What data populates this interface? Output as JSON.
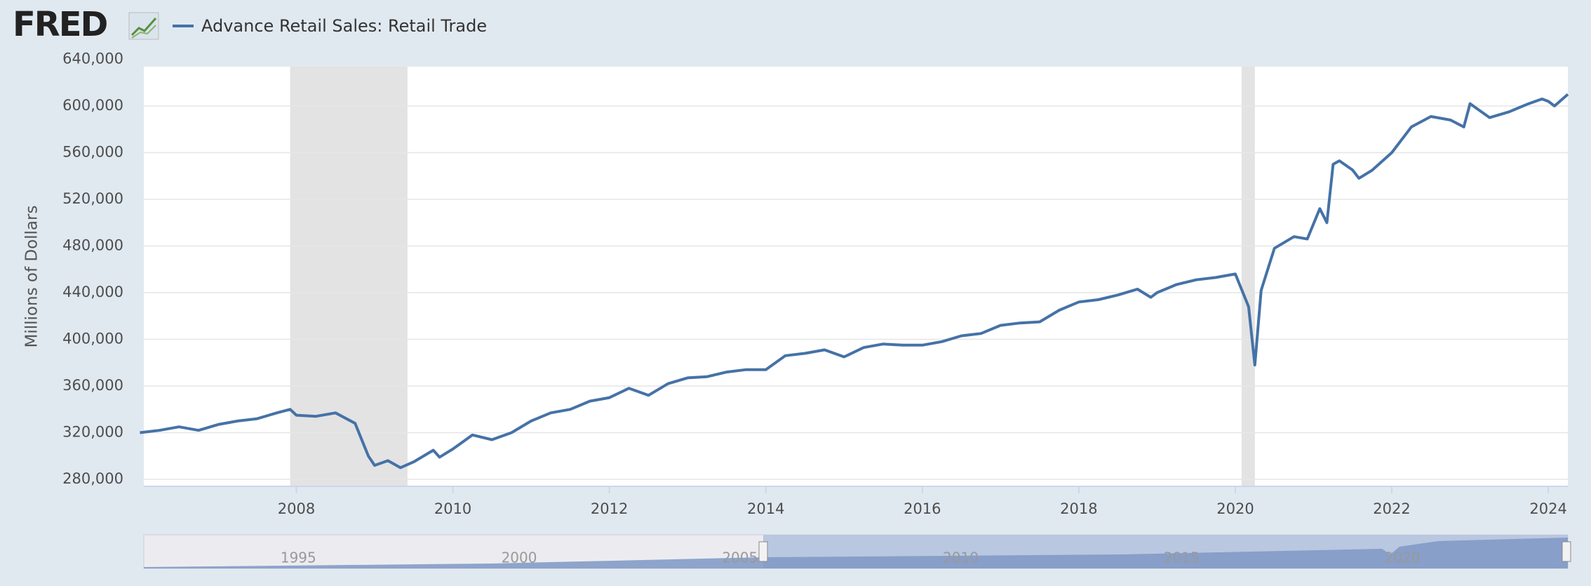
{
  "logo": "FRED",
  "chart_data": {
    "type": "line",
    "legend": "Advance Retail Sales: Retail Trade",
    "ylabel": "Millions of Dollars",
    "series": [
      {
        "name": "Advance Retail Sales: Retail Trade",
        "color": "#4572a7",
        "x": [
          2006.0,
          2006.25,
          2006.5,
          2006.75,
          2007.0,
          2007.25,
          2007.5,
          2007.75,
          2007.92,
          2008.0,
          2008.25,
          2008.5,
          2008.75,
          2008.92,
          2009.0,
          2009.17,
          2009.33,
          2009.5,
          2009.75,
          2009.83,
          2010.0,
          2010.25,
          2010.5,
          2010.75,
          2011.0,
          2011.25,
          2011.5,
          2011.75,
          2012.0,
          2012.25,
          2012.5,
          2012.75,
          2013.0,
          2013.25,
          2013.5,
          2013.75,
          2014.0,
          2014.25,
          2014.5,
          2014.75,
          2015.0,
          2015.25,
          2015.5,
          2015.75,
          2016.0,
          2016.25,
          2016.5,
          2016.75,
          2017.0,
          2017.25,
          2017.5,
          2017.75,
          2018.0,
          2018.25,
          2018.5,
          2018.75,
          2018.92,
          2019.0,
          2019.25,
          2019.5,
          2019.75,
          2020.0,
          2020.17,
          2020.25,
          2020.33,
          2020.5,
          2020.75,
          2020.92,
          2021.08,
          2021.17,
          2021.25,
          2021.33,
          2021.5,
          2021.58,
          2021.75,
          2022.0,
          2022.25,
          2022.5,
          2022.75,
          2022.92,
          2023.0,
          2023.25,
          2023.5,
          2023.75,
          2023.92,
          2024.0,
          2024.08,
          2024.25
        ],
        "values": [
          320000,
          322000,
          325000,
          322000,
          327000,
          330000,
          332000,
          337000,
          340000,
          335000,
          334000,
          337000,
          328000,
          300000,
          292000,
          296000,
          290000,
          295000,
          305000,
          299000,
          306000,
          318000,
          314000,
          320000,
          330000,
          337000,
          340000,
          347000,
          350000,
          358000,
          352000,
          362000,
          367000,
          368000,
          372000,
          374000,
          374000,
          386000,
          388000,
          391000,
          385000,
          393000,
          396000,
          395000,
          395000,
          398000,
          403000,
          405000,
          412000,
          414000,
          415000,
          425000,
          432000,
          434000,
          438000,
          443000,
          436000,
          440000,
          447000,
          451000,
          453000,
          456000,
          428000,
          378000,
          442000,
          478000,
          488000,
          486000,
          512000,
          500000,
          550000,
          553000,
          545000,
          538000,
          545000,
          560000,
          582000,
          591000,
          588000,
          582000,
          602000,
          590000,
          595000,
          602000,
          606000,
          604000,
          600000,
          610000
        ]
      }
    ],
    "recessions": [
      [
        2007.92,
        2009.42
      ],
      [
        2020.08,
        2020.25
      ]
    ],
    "xlim": [
      2006.05,
      2024.25
    ],
    "xticks": [
      2008,
      2010,
      2012,
      2014,
      2016,
      2018,
      2020,
      2022,
      2024
    ],
    "ylim": [
      274000,
      640000
    ],
    "yticks": [
      {
        "value": 280000,
        "label": "280,000"
      },
      {
        "value": 320000,
        "label": "320,000"
      },
      {
        "value": 360000,
        "label": "360,000"
      },
      {
        "value": 400000,
        "label": "400,000"
      },
      {
        "value": 440000,
        "label": "440,000"
      },
      {
        "value": 480000,
        "label": "480,000"
      },
      {
        "value": 520000,
        "label": "520,000"
      },
      {
        "value": 560000,
        "label": "560,000"
      },
      {
        "value": 600000,
        "label": "600,000"
      },
      {
        "value": 640000,
        "label": "640,000"
      }
    ],
    "grid": true,
    "navigator": {
      "xlim": [
        1991.5,
        2023.75
      ],
      "xticks": [
        1995,
        2000,
        2005,
        2010,
        2015,
        2020
      ]
    }
  }
}
